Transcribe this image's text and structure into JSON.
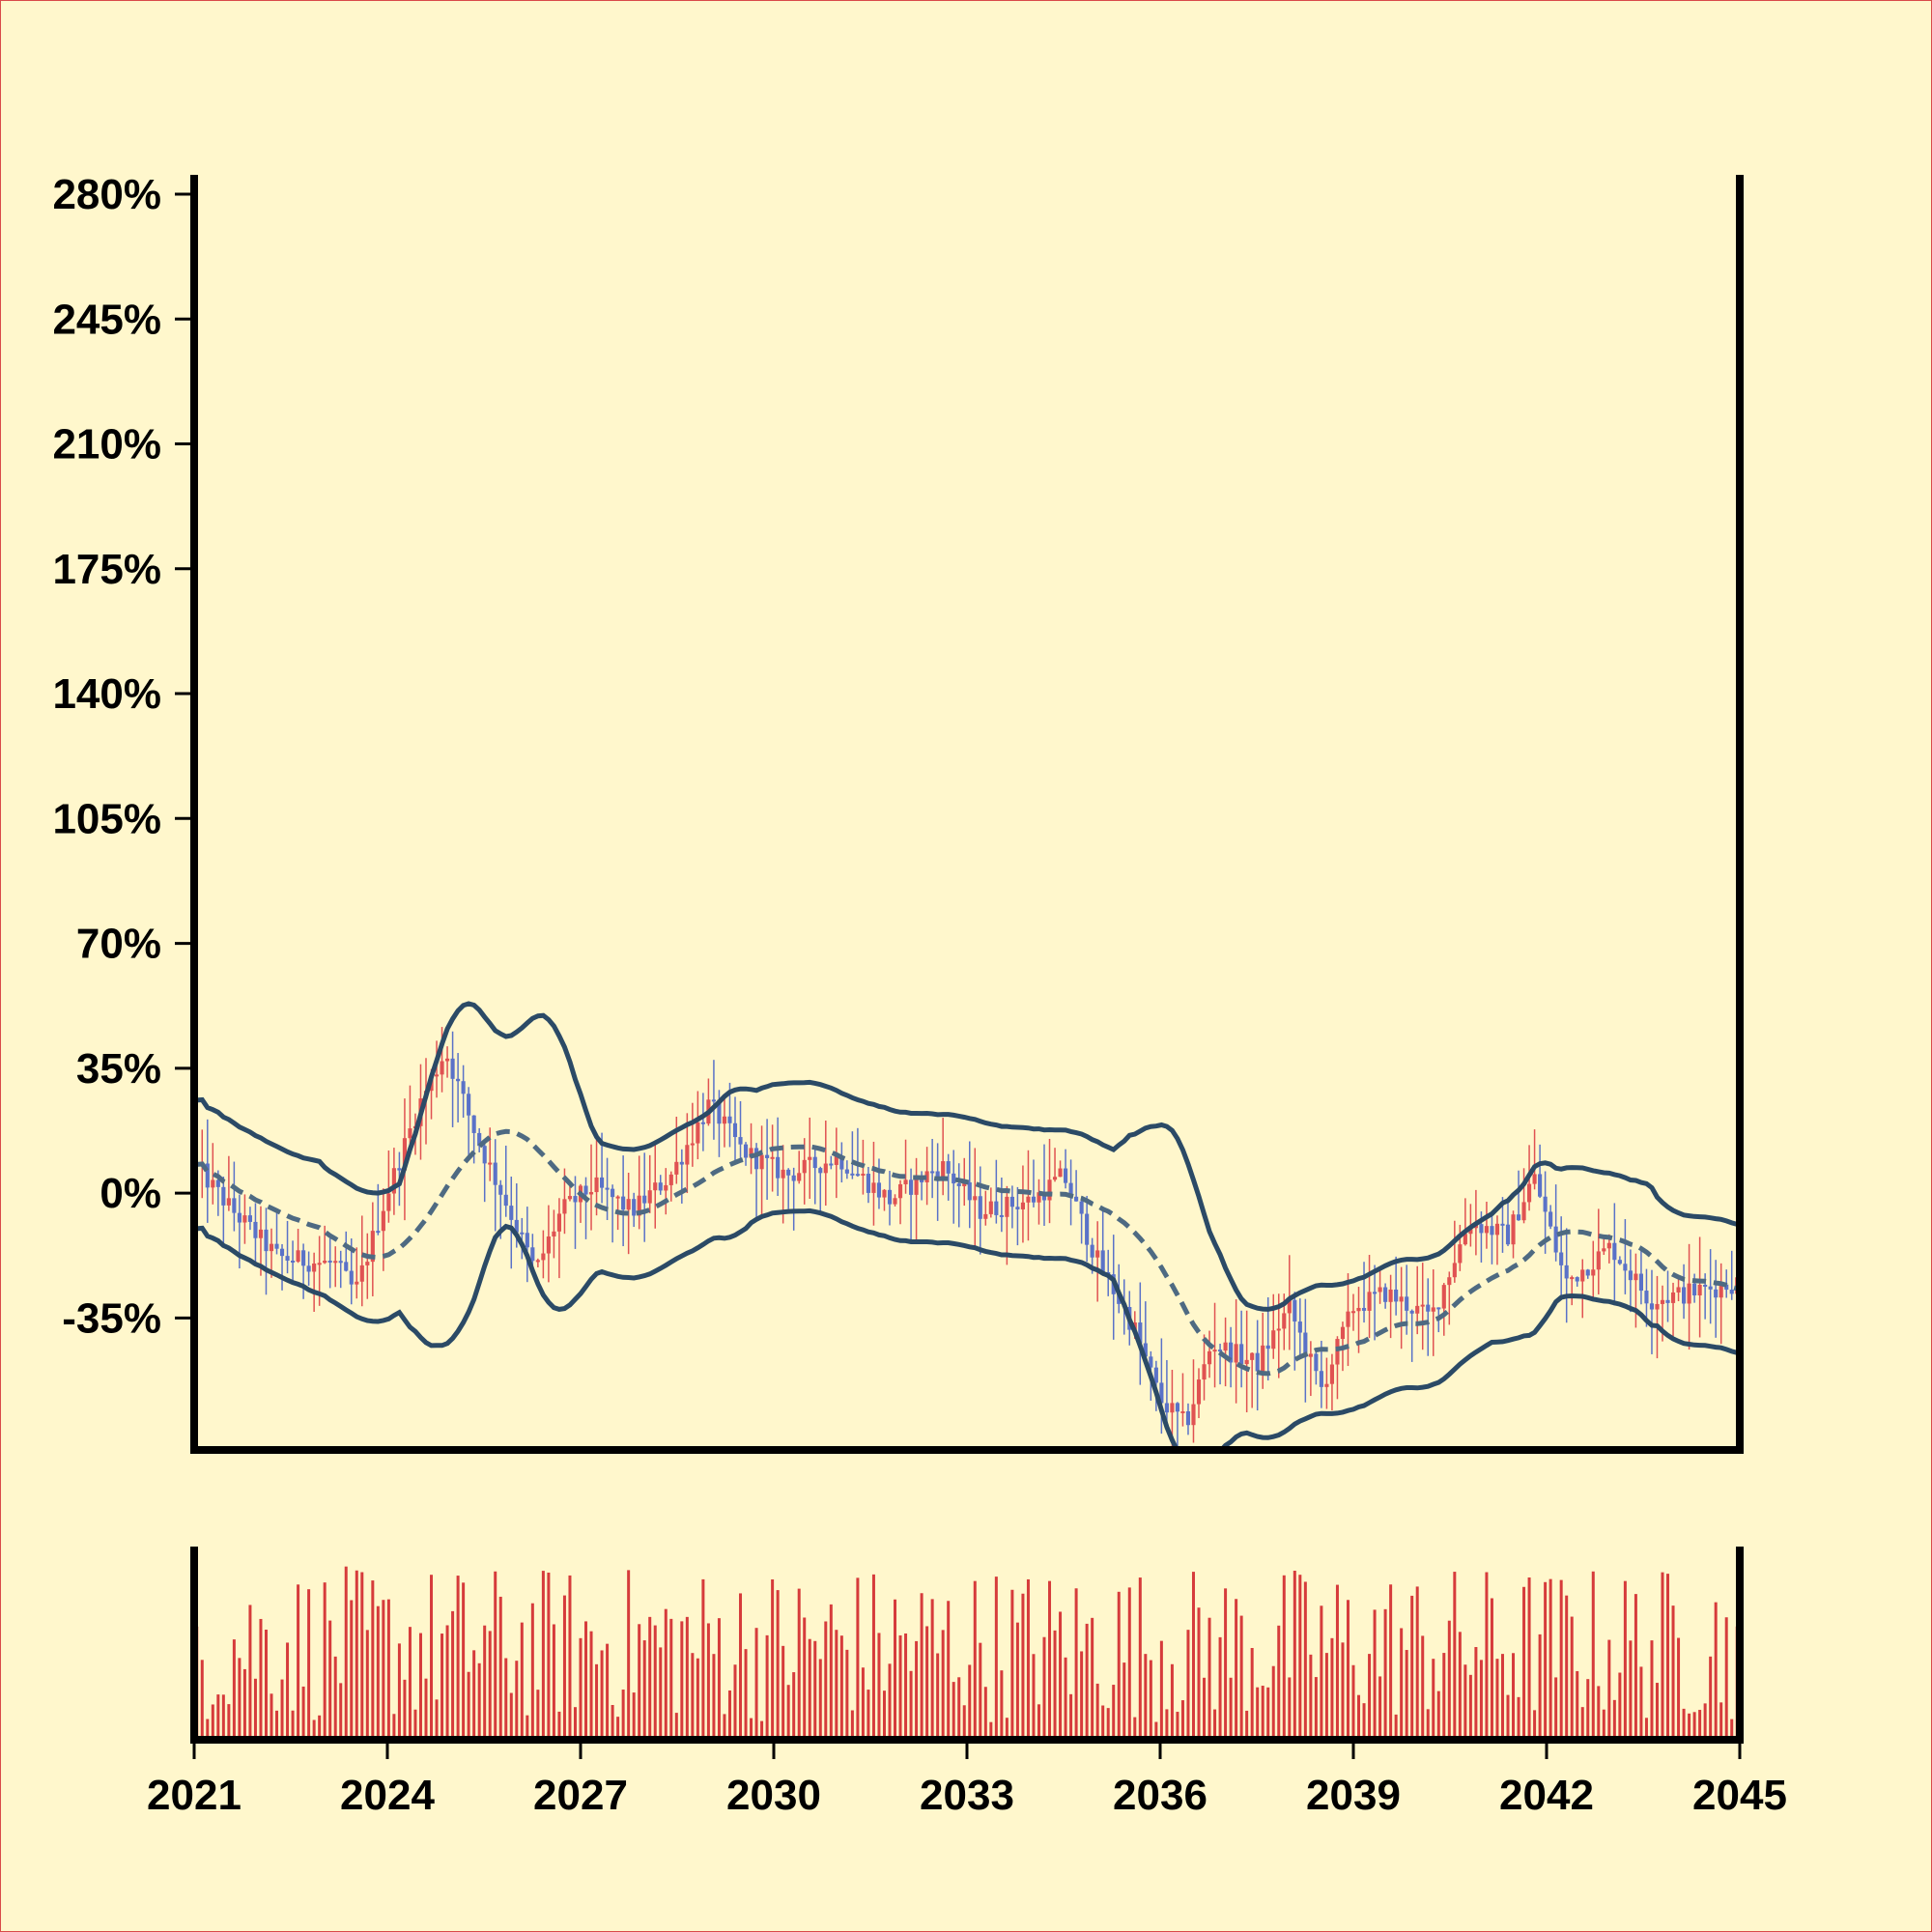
{
  "colors": {
    "background": "#fff7cc",
    "axis": "#000000",
    "up_candle": "#e05252",
    "down_candle": "#5a72c8",
    "band_line": "#2b4a66",
    "mid_line": "#4e6a82",
    "volume_bar": "#d63b3b"
  },
  "chart_data": [
    {
      "type": "candlestick",
      "title": "",
      "xlabel": "",
      "ylabel": "",
      "x_start": 2021,
      "x_end": 2045,
      "xlim": [
        2021,
        2045
      ],
      "ylim": [
        -72,
        280
      ],
      "y_ticks": [
        "280%",
        "245%",
        "210%",
        "175%",
        "140%",
        "105%",
        "70%",
        "35%",
        "0%",
        "-35%"
      ],
      "y_tick_values": [
        280,
        245,
        210,
        175,
        140,
        105,
        70,
        35,
        0,
        -35
      ],
      "grid": false,
      "overlays": [
        "upper band",
        "middle average (dashed)",
        "lower band"
      ],
      "close_path_keypoints": [
        {
          "x": 2021.0,
          "y": 8
        },
        {
          "x": 2021.6,
          "y": -5
        },
        {
          "x": 2022.3,
          "y": -18
        },
        {
          "x": 2023.2,
          "y": -20
        },
        {
          "x": 2023.5,
          "y": -28
        },
        {
          "x": 2024.0,
          "y": 0
        },
        {
          "x": 2024.5,
          "y": 25
        },
        {
          "x": 2024.9,
          "y": 40
        },
        {
          "x": 2025.4,
          "y": 15
        },
        {
          "x": 2025.9,
          "y": -5
        },
        {
          "x": 2026.3,
          "y": -22
        },
        {
          "x": 2026.7,
          "y": -5
        },
        {
          "x": 2027.2,
          "y": 2
        },
        {
          "x": 2027.8,
          "y": -5
        },
        {
          "x": 2028.4,
          "y": 5
        },
        {
          "x": 2029.0,
          "y": 25
        },
        {
          "x": 2029.5,
          "y": 12
        },
        {
          "x": 2030.2,
          "y": 5
        },
        {
          "x": 2031.0,
          "y": 10
        },
        {
          "x": 2031.8,
          "y": -2
        },
        {
          "x": 2032.6,
          "y": 8
        },
        {
          "x": 2033.2,
          "y": -5
        },
        {
          "x": 2034.0,
          "y": -2
        },
        {
          "x": 2034.5,
          "y": 5
        },
        {
          "x": 2035.0,
          "y": -18
        },
        {
          "x": 2035.6,
          "y": -38
        },
        {
          "x": 2036.0,
          "y": -58
        },
        {
          "x": 2036.4,
          "y": -65
        },
        {
          "x": 2036.8,
          "y": -42
        },
        {
          "x": 2037.5,
          "y": -48
        },
        {
          "x": 2038.0,
          "y": -32
        },
        {
          "x": 2038.5,
          "y": -55
        },
        {
          "x": 2039.0,
          "y": -32
        },
        {
          "x": 2039.5,
          "y": -28
        },
        {
          "x": 2040.2,
          "y": -35
        },
        {
          "x": 2040.8,
          "y": -8
        },
        {
          "x": 2041.4,
          "y": -12
        },
        {
          "x": 2041.8,
          "y": 5
        },
        {
          "x": 2042.3,
          "y": -25
        },
        {
          "x": 2043.0,
          "y": -15
        },
        {
          "x": 2043.6,
          "y": -30
        },
        {
          "x": 2044.2,
          "y": -28
        },
        {
          "x": 2045.0,
          "y": -25
        }
      ]
    },
    {
      "type": "bar",
      "title": "",
      "xlabel": "",
      "ylabel": "",
      "x_ticks": [
        "2021",
        "2024",
        "2027",
        "2030",
        "2033",
        "2036",
        "2039",
        "2042",
        "2045"
      ],
      "x_tick_values": [
        2021,
        2024,
        2027,
        2030,
        2033,
        2036,
        2039,
        2042,
        2045
      ],
      "series": [
        {
          "values_note": "volume per period, shown as red bars"
        }
      ]
    }
  ]
}
